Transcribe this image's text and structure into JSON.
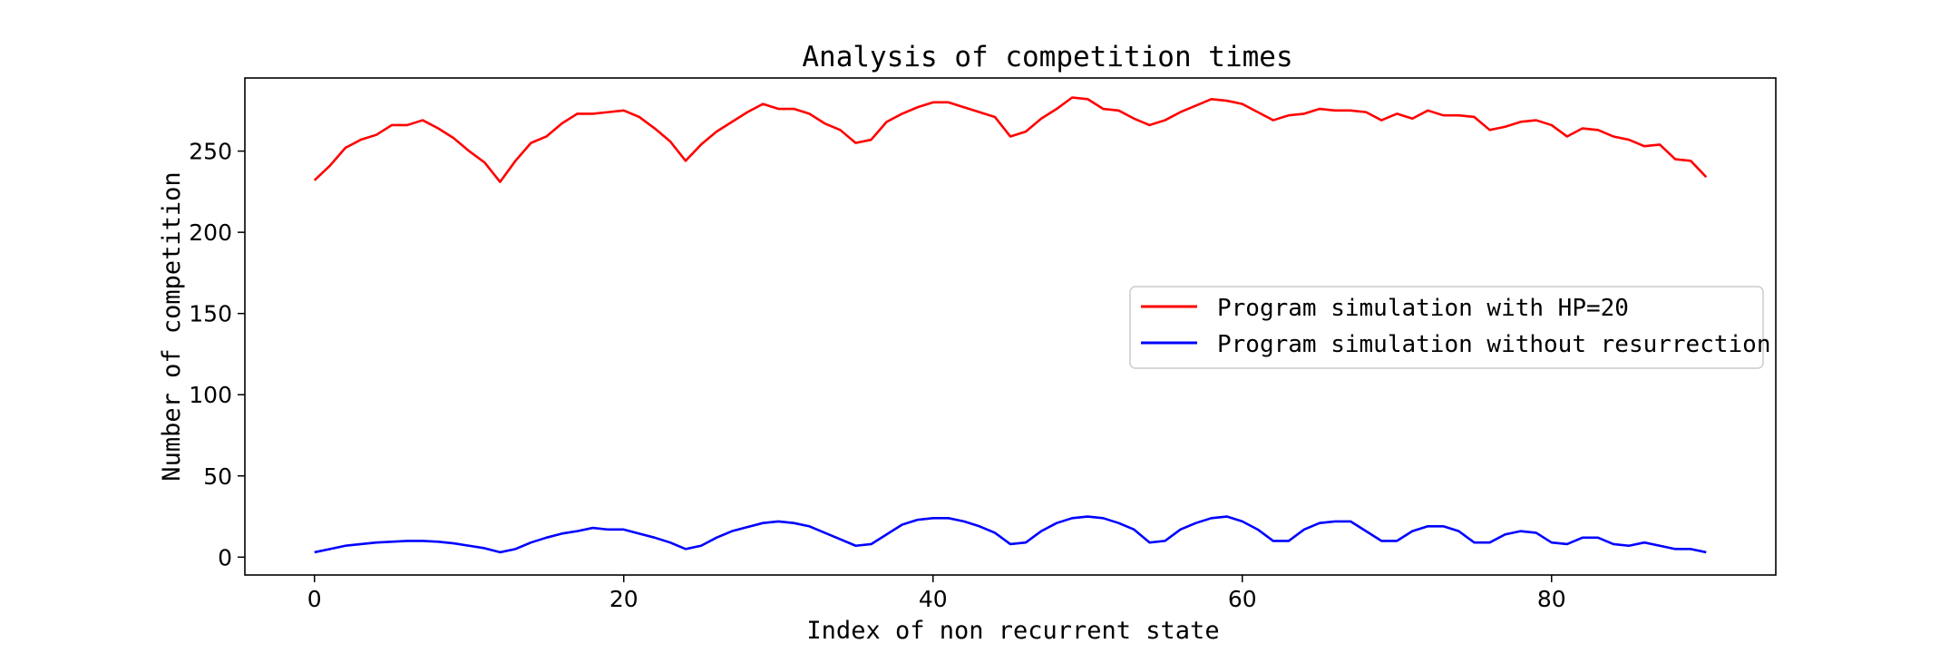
{
  "chart_data": {
    "type": "line",
    "title": "Analysis of competition times",
    "xlabel": "Index of non recurrent state",
    "ylabel": "Number of competition",
    "xlim": [
      -4.5,
      94.5
    ],
    "ylim": [
      -11,
      295
    ],
    "x_ticks": [
      0,
      20,
      40,
      60,
      80
    ],
    "y_ticks": [
      0,
      50,
      100,
      150,
      200,
      250
    ],
    "grid": false,
    "legend_position": "center-right",
    "x": [
      0,
      1,
      2,
      3,
      4,
      5,
      6,
      7,
      8,
      9,
      10,
      11,
      12,
      13,
      14,
      15,
      16,
      17,
      18,
      19,
      20,
      21,
      22,
      23,
      24,
      25,
      26,
      27,
      28,
      29,
      30,
      31,
      32,
      33,
      34,
      35,
      36,
      37,
      38,
      39,
      40,
      41,
      42,
      43,
      44,
      45,
      46,
      47,
      48,
      49,
      50,
      51,
      52,
      53,
      54,
      55,
      56,
      57,
      58,
      59,
      60,
      61,
      62,
      63,
      64,
      65,
      66,
      67,
      68,
      69,
      70,
      71,
      72,
      73,
      74,
      75,
      76,
      77,
      78,
      79,
      80,
      81,
      82,
      83,
      84,
      85,
      86,
      87,
      88,
      89,
      90
    ],
    "series": [
      {
        "name": "Program simulation with HP=20",
        "color": "#ff0000",
        "values": [
          232,
          241,
          252,
          257,
          260,
          266,
          266,
          269,
          264,
          258,
          250,
          243,
          231,
          244,
          255,
          259,
          267,
          273,
          273,
          274,
          275,
          271,
          264,
          256,
          244,
          254,
          262,
          268,
          274,
          279,
          276,
          276,
          273,
          267,
          263,
          255,
          257,
          268,
          273,
          277,
          280,
          280,
          277,
          274,
          271,
          259,
          262,
          270,
          276,
          283,
          282,
          276,
          275,
          270,
          266,
          269,
          274,
          278,
          282,
          281,
          279,
          274,
          269,
          272,
          273,
          276,
          275,
          275,
          274,
          269,
          273,
          270,
          275,
          272,
          272,
          271,
          263,
          265,
          268,
          269,
          266,
          259,
          264,
          263,
          259,
          257,
          253,
          254,
          245,
          244,
          234
        ]
      },
      {
        "name": "Program simulation without resurrection",
        "color": "#0000ff",
        "values": [
          3,
          5,
          7,
          8,
          9,
          9.5,
          10,
          10,
          9.5,
          8.5,
          7,
          5.5,
          3,
          5,
          9,
          12,
          14.5,
          16,
          18,
          17,
          17,
          14.5,
          12,
          9,
          5,
          7,
          12,
          16,
          18.5,
          21,
          22,
          21,
          19,
          15,
          11,
          7,
          8,
          14,
          20,
          23,
          24,
          24,
          22,
          19,
          15,
          8,
          9,
          16,
          21,
          24,
          25,
          24,
          21,
          17,
          9,
          10,
          17,
          21,
          24,
          25,
          22,
          17,
          10,
          10,
          17,
          21,
          22,
          22,
          16,
          10,
          10,
          16,
          19,
          19,
          16,
          9,
          9,
          14,
          16,
          15,
          9,
          8,
          12,
          12,
          8,
          7,
          9,
          7,
          5,
          5,
          3
        ]
      }
    ]
  }
}
